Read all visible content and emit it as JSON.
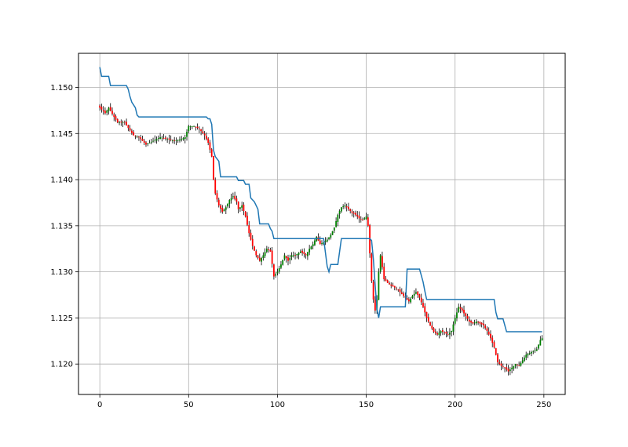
{
  "chart_data": {
    "type": "candlestick",
    "title": "",
    "xlabel": "",
    "ylabel": "",
    "xlim": [
      -12,
      262
    ],
    "ylim": [
      1.1167,
      1.1537
    ],
    "xticks": [
      0,
      50,
      100,
      150,
      200,
      250
    ],
    "yticks": [
      1.12,
      1.125,
      1.13,
      1.135,
      1.14,
      1.145,
      1.15
    ],
    "xtick_labels": [
      "0",
      "50",
      "100",
      "150",
      "200",
      "250"
    ],
    "ytick_labels": [
      "1.120",
      "1.125",
      "1.130",
      "1.135",
      "1.140",
      "1.145",
      "1.150"
    ],
    "grid": true,
    "colors": {
      "up": "#008000",
      "down": "#ff0000",
      "wick": "#000000",
      "line": "#1f77b4",
      "grid": "#b0b0b0"
    },
    "close_path": [
      [
        0,
        1.1478
      ],
      [
        3,
        1.1472
      ],
      [
        5,
        1.1478
      ],
      [
        8,
        1.1468
      ],
      [
        10,
        1.1462
      ],
      [
        14,
        1.1462
      ],
      [
        16,
        1.1456
      ],
      [
        19,
        1.1448
      ],
      [
        22,
        1.1446
      ],
      [
        26,
        1.1438
      ],
      [
        30,
        1.1442
      ],
      [
        34,
        1.1446
      ],
      [
        38,
        1.1444
      ],
      [
        42,
        1.1442
      ],
      [
        46,
        1.1444
      ],
      [
        48,
        1.1446
      ],
      [
        50,
        1.1458
      ],
      [
        53,
        1.1458
      ],
      [
        56,
        1.1455
      ],
      [
        59,
        1.1448
      ],
      [
        61,
        1.144
      ],
      [
        63,
        1.1425
      ],
      [
        64,
        1.14
      ],
      [
        65,
        1.1385
      ],
      [
        67,
        1.1372
      ],
      [
        69,
        1.1365
      ],
      [
        71,
        1.137
      ],
      [
        73,
        1.1378
      ],
      [
        75,
        1.1382
      ],
      [
        77,
        1.1376
      ],
      [
        78,
        1.1368
      ],
      [
        80,
        1.1372
      ],
      [
        82,
        1.136
      ],
      [
        84,
        1.1342
      ],
      [
        86,
        1.1328
      ],
      [
        88,
        1.1318
      ],
      [
        90,
        1.1312
      ],
      [
        92,
        1.1318
      ],
      [
        94,
        1.1325
      ],
      [
        96,
        1.1322
      ],
      [
        98,
        1.1295
      ],
      [
        100,
        1.13
      ],
      [
        102,
        1.1308
      ],
      [
        104,
        1.1318
      ],
      [
        106,
        1.1312
      ],
      [
        108,
        1.1318
      ],
      [
        110,
        1.1318
      ],
      [
        113,
        1.1322
      ],
      [
        116,
        1.1318
      ],
      [
        118,
        1.1325
      ],
      [
        120,
        1.133
      ],
      [
        122,
        1.1338
      ],
      [
        124,
        1.133
      ],
      [
        126,
        1.1332
      ],
      [
        128,
        1.1335
      ],
      [
        130,
        1.134
      ],
      [
        132,
        1.1348
      ],
      [
        134,
        1.1362
      ],
      [
        136,
        1.137
      ],
      [
        138,
        1.1372
      ],
      [
        140,
        1.1368
      ],
      [
        142,
        1.1364
      ],
      [
        144,
        1.1362
      ],
      [
        146,
        1.1358
      ],
      [
        148,
        1.1356
      ],
      [
        150,
        1.136
      ],
      [
        151,
        1.135
      ],
      [
        152,
        1.132
      ],
      [
        153,
        1.129
      ],
      [
        154,
        1.127
      ],
      [
        155,
        1.1258
      ],
      [
        156,
        1.127
      ],
      [
        157,
        1.13
      ],
      [
        158,
        1.1318
      ],
      [
        159,
        1.1305
      ],
      [
        160,
        1.1292
      ],
      [
        162,
        1.1288
      ],
      [
        164,
        1.1285
      ],
      [
        166,
        1.1283
      ],
      [
        168,
        1.128
      ],
      [
        170,
        1.1276
      ],
      [
        172,
        1.1272
      ],
      [
        174,
        1.1268
      ],
      [
        176,
        1.1274
      ],
      [
        178,
        1.1278
      ],
      [
        180,
        1.1272
      ],
      [
        182,
        1.1262
      ],
      [
        184,
        1.125
      ],
      [
        186,
        1.1242
      ],
      [
        188,
        1.1235
      ],
      [
        190,
        1.1232
      ],
      [
        192,
        1.1236
      ],
      [
        194,
        1.1234
      ],
      [
        196,
        1.1232
      ],
      [
        198,
        1.1236
      ],
      [
        200,
        1.125
      ],
      [
        202,
        1.1262
      ],
      [
        204,
        1.1258
      ],
      [
        206,
        1.1252
      ],
      [
        208,
        1.1246
      ],
      [
        210,
        1.1244
      ],
      [
        212,
        1.1246
      ],
      [
        214,
        1.1244
      ],
      [
        216,
        1.1242
      ],
      [
        218,
        1.1236
      ],
      [
        220,
        1.1228
      ],
      [
        222,
        1.1218
      ],
      [
        224,
        1.1202
      ],
      [
        226,
        1.1198
      ],
      [
        228,
        1.1196
      ],
      [
        230,
        1.1192
      ],
      [
        232,
        1.1196
      ],
      [
        234,
        1.12
      ],
      [
        236,
        1.1198
      ],
      [
        238,
        1.1204
      ],
      [
        240,
        1.121
      ],
      [
        242,
        1.1212
      ],
      [
        244,
        1.1214
      ],
      [
        246,
        1.1216
      ],
      [
        248,
        1.1226
      ],
      [
        249,
        1.1228
      ]
    ],
    "series": [
      {
        "values": [
          [
            0,
            1.1522
          ],
          [
            1,
            1.1512
          ],
          [
            5,
            1.1512
          ],
          [
            6,
            1.1502
          ],
          [
            15,
            1.1502
          ],
          [
            16,
            1.1498
          ],
          [
            17,
            1.149
          ],
          [
            18,
            1.1484
          ],
          [
            20,
            1.1478
          ],
          [
            21,
            1.147
          ],
          [
            22,
            1.1468
          ],
          [
            60,
            1.1468
          ],
          [
            61,
            1.1466
          ],
          [
            62,
            1.1466
          ],
          [
            63,
            1.146
          ],
          [
            64,
            1.1432
          ],
          [
            65,
            1.1425
          ],
          [
            67,
            1.142
          ],
          [
            68,
            1.1403
          ],
          [
            77,
            1.1403
          ],
          [
            78,
            1.1399
          ],
          [
            81,
            1.1399
          ],
          [
            82,
            1.1395
          ],
          [
            84,
            1.1395
          ],
          [
            85,
            1.138
          ],
          [
            87,
            1.1376
          ],
          [
            89,
            1.1368
          ],
          [
            90,
            1.1352
          ],
          [
            95,
            1.1352
          ],
          [
            96,
            1.1347
          ],
          [
            97,
            1.1344
          ],
          [
            98,
            1.1336
          ],
          [
            126,
            1.1336
          ],
          [
            128,
            1.1306
          ],
          [
            129,
            1.13
          ],
          [
            130,
            1.1308
          ],
          [
            134,
            1.1308
          ],
          [
            136,
            1.1336
          ],
          [
            152,
            1.1336
          ],
          [
            153,
            1.1334
          ],
          [
            154,
            1.1314
          ],
          [
            155,
            1.1286
          ],
          [
            156,
            1.126
          ],
          [
            157,
            1.125
          ],
          [
            158,
            1.1262
          ],
          [
            172,
            1.1262
          ],
          [
            173,
            1.1303
          ],
          [
            180,
            1.1303
          ],
          [
            181,
            1.1296
          ],
          [
            182,
            1.1289
          ],
          [
            183,
            1.1279
          ],
          [
            184,
            1.127
          ],
          [
            222,
            1.127
          ],
          [
            223,
            1.1256
          ],
          [
            224,
            1.1249
          ],
          [
            227,
            1.1249
          ],
          [
            228,
            1.1242
          ],
          [
            229,
            1.1235
          ],
          [
            249,
            1.1235
          ]
        ]
      }
    ]
  }
}
